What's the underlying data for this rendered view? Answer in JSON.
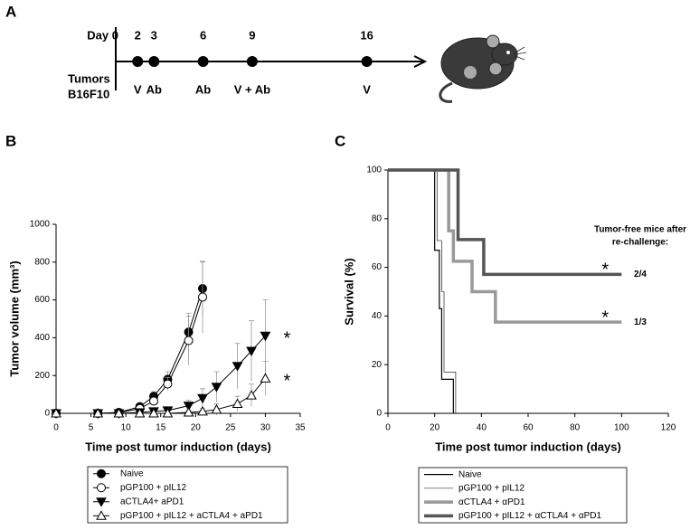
{
  "timeline": {
    "panel": "A",
    "start_label": "Day 0",
    "row_label": "Tumors",
    "cell_line": "B16F10",
    "events": [
      {
        "day": 2,
        "label": "V"
      },
      {
        "day": 3,
        "label": "Ab"
      },
      {
        "day": 6,
        "label": "Ab"
      },
      {
        "day": 9,
        "label": "V + Ab"
      },
      {
        "day": 16,
        "label": "V"
      }
    ]
  },
  "chart_data": [
    {
      "type": "line",
      "panel": "B",
      "xlabel": "Time post tumor induction (days)",
      "ylabel": "Tumor volume (mm³)",
      "xlim": [
        0,
        35
      ],
      "xticks": [
        0,
        5,
        10,
        15,
        20,
        25,
        30,
        35
      ],
      "ylim": [
        0,
        1000
      ],
      "yticks": [
        0,
        200,
        400,
        600,
        800,
        1000
      ],
      "legend": "below",
      "series": [
        {
          "name": "Naive",
          "color": "#000000",
          "marker": "circle",
          "marker_fill": "#000000",
          "x": [
            0,
            6,
            9,
            12,
            14,
            16,
            19,
            21
          ],
          "values": [
            0,
            0,
            5,
            35,
            90,
            180,
            430,
            660
          ],
          "errors": [
            0,
            0,
            5,
            15,
            25,
            40,
            100,
            140
          ]
        },
        {
          "name": "pGP100 + pIL12",
          "color": "#000000",
          "marker": "circle",
          "marker_fill": "#ffffff",
          "x": [
            0,
            6,
            9,
            12,
            14,
            16,
            19,
            21
          ],
          "values": [
            0,
            0,
            3,
            25,
            65,
            155,
            385,
            615
          ],
          "errors": [
            0,
            0,
            3,
            10,
            20,
            35,
            130,
            190
          ]
        },
        {
          "name": "aCTLA4+ aPD1",
          "color": "#000000",
          "marker": "triangle-down",
          "marker_fill": "#000000",
          "note": "*",
          "x": [
            0,
            6,
            9,
            12,
            14,
            16,
            19,
            21,
            23,
            26,
            28,
            30
          ],
          "values": [
            0,
            0,
            0,
            5,
            10,
            15,
            40,
            80,
            140,
            250,
            330,
            410
          ],
          "errors": [
            0,
            0,
            0,
            5,
            8,
            10,
            30,
            50,
            80,
            120,
            160,
            190
          ]
        },
        {
          "name": "pGP100 + pIL12 + aCTLA4 + aPD1",
          "color": "#000000",
          "marker": "triangle-up",
          "marker_fill": "#ffffff",
          "note": "*",
          "x": [
            0,
            6,
            9,
            12,
            14,
            16,
            19,
            21,
            23,
            26,
            28,
            30
          ],
          "values": [
            0,
            0,
            0,
            0,
            0,
            0,
            5,
            10,
            20,
            50,
            95,
            185
          ],
          "errors": [
            0,
            0,
            0,
            0,
            0,
            0,
            10,
            15,
            30,
            40,
            60,
            90
          ]
        }
      ]
    },
    {
      "type": "step",
      "panel": "C",
      "xlabel": "Time post tumor induction (days)",
      "ylabel": "Survival (%)",
      "xlim": [
        0,
        120
      ],
      "xticks": [
        0,
        20,
        40,
        60,
        80,
        100,
        120
      ],
      "ylim": [
        0,
        100
      ],
      "yticks": [
        0,
        20,
        40,
        60,
        80,
        100
      ],
      "legend": "below",
      "annotation_title": [
        "Tumor-free mice after",
        "re-challenge:"
      ],
      "series": [
        {
          "name": "Naive",
          "color": "#000000",
          "line_width": 1.2,
          "x": [
            0,
            20,
            22,
            23,
            28
          ],
          "values": [
            100,
            67,
            43,
            14,
            0
          ]
        },
        {
          "name": "pGP100 + pIL12",
          "color": "#000000",
          "line_width": 0.6,
          "x": [
            0,
            21,
            23,
            24,
            29
          ],
          "values": [
            100,
            71,
            50,
            17,
            0
          ]
        },
        {
          "name": "αCTLA4 + αPD1",
          "color": "#999999",
          "line_width": 3.5,
          "note": "*",
          "challenge": "1/3",
          "x": [
            0,
            26,
            28,
            36,
            46,
            100
          ],
          "values": [
            100,
            75,
            62.5,
            50,
            37.5,
            37.5
          ]
        },
        {
          "name": "pGP100 + pIL12 + αCTLA4 + αPD1",
          "color": "#555555",
          "line_width": 3.5,
          "note": "*",
          "challenge": "2/4",
          "x": [
            0,
            30,
            41,
            100
          ],
          "values": [
            100,
            71.4,
            57.1,
            57.1
          ]
        }
      ]
    }
  ]
}
